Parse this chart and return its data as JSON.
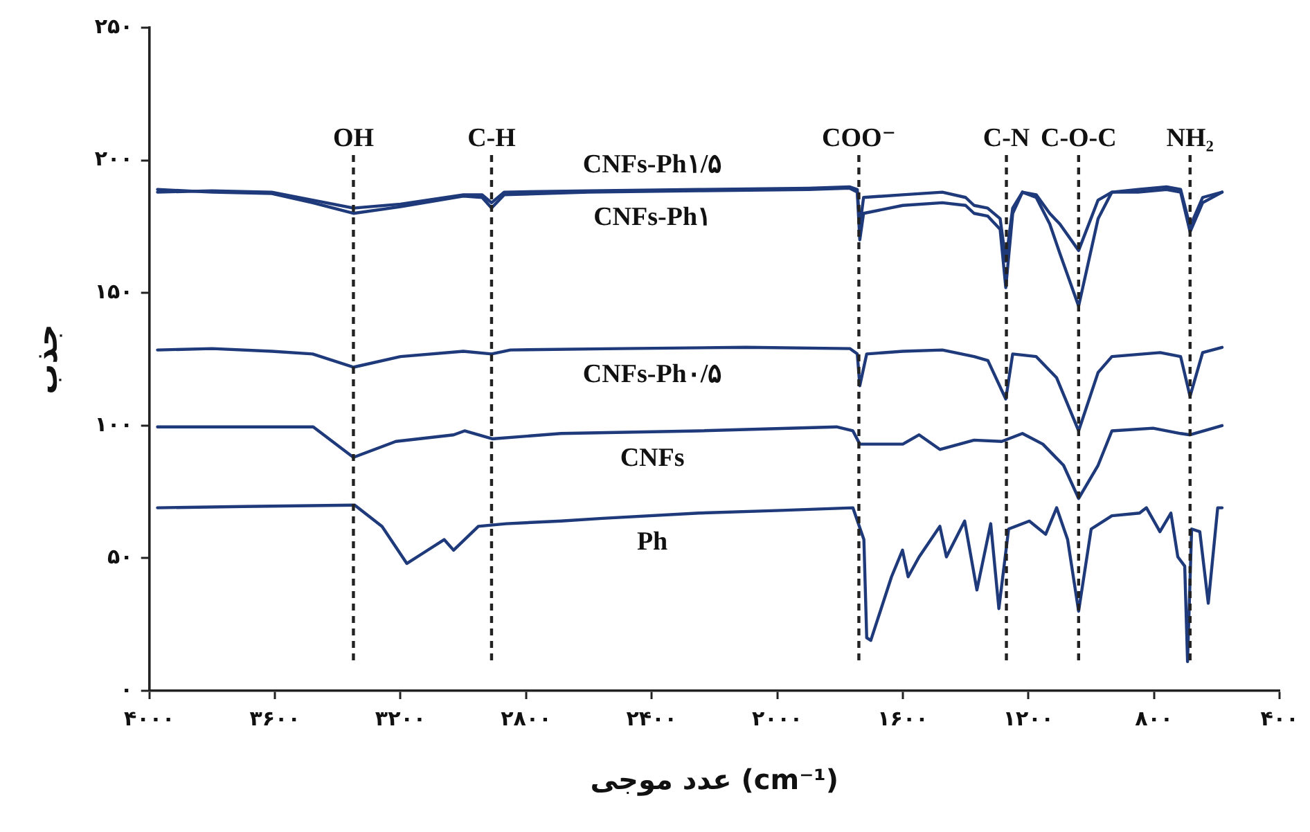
{
  "chart_data": {
    "type": "line",
    "xlabel": "عدد موجی (cm⁻¹)",
    "ylabel": "جذب",
    "xlim": [
      4000,
      400
    ],
    "ylim": [
      0,
      250
    ],
    "xticks": [
      {
        "value": 4000,
        "label": "۴۰۰۰"
      },
      {
        "value": 3600,
        "label": "۳۶۰۰"
      },
      {
        "value": 3200,
        "label": "۳۲۰۰"
      },
      {
        "value": 2800,
        "label": "۲۸۰۰"
      },
      {
        "value": 2400,
        "label": "۲۴۰۰"
      },
      {
        "value": 2000,
        "label": "۲۰۰۰"
      },
      {
        "value": 1600,
        "label": "۱۶۰۰"
      },
      {
        "value": 1200,
        "label": "۱۲۰۰"
      },
      {
        "value": 800,
        "label": "۸۰۰"
      },
      {
        "value": 400,
        "label": "۴۰۰"
      }
    ],
    "yticks": [
      {
        "value": 0,
        "label": "۰"
      },
      {
        "value": 50,
        "label": "۵۰"
      },
      {
        "value": 100,
        "label": "۱۰۰"
      },
      {
        "value": 150,
        "label": "۱۵۰"
      },
      {
        "value": 200,
        "label": "۲۰۰"
      },
      {
        "value": 250,
        "label": "۲۵۰"
      }
    ],
    "grid": false,
    "ref_lines": [
      {
        "axis": "x",
        "value": 3350,
        "label": "OH",
        "line_style": "dashed",
        "color": "#222222"
      },
      {
        "axis": "x",
        "value": 2910,
        "label": "C-H",
        "line_style": "dashed",
        "color": "#222222"
      },
      {
        "axis": "x",
        "value": 1740,
        "label": "COO⁻",
        "line_style": "dashed",
        "color": "#222222"
      },
      {
        "axis": "x",
        "value": 1270,
        "label": "C-N",
        "line_style": "dashed",
        "color": "#222222"
      },
      {
        "axis": "x",
        "value": 1040,
        "label": "C-O-C",
        "line_style": "dashed",
        "color": "#222222"
      },
      {
        "axis": "x",
        "value": 685,
        "label": "NH₂",
        "line_style": "dashed",
        "color": "#222222"
      }
    ],
    "series": [
      {
        "name": "CNFs-Ph۱/۵",
        "color": "#1f3a7a",
        "x": [
          3974,
          3800,
          3610,
          3480,
          3350,
          3200,
          3000,
          2940,
          2910,
          2870,
          2600,
          2250,
          1900,
          1770,
          1745,
          1737,
          1725,
          1600,
          1474,
          1400,
          1373,
          1330,
          1290,
          1272,
          1250,
          1219,
          1175,
          1132,
          1100,
          1040,
          978,
          934,
          850,
          760,
          715,
          685,
          645,
          583
        ],
        "values": [
          188,
          188.5,
          188,
          185,
          182,
          183.5,
          187,
          187,
          184,
          188,
          188.5,
          189,
          189.5,
          190,
          189,
          175,
          186,
          187,
          188,
          186,
          183,
          182,
          178,
          162,
          182,
          188,
          187,
          180,
          176,
          166,
          185,
          188,
          189,
          190,
          189,
          175,
          186,
          188
        ]
      },
      {
        "name": "CNFs-Ph۱",
        "color": "#1f3a7a",
        "x": [
          3974,
          3800,
          3610,
          3480,
          3350,
          3200,
          3000,
          2940,
          2910,
          2870,
          2600,
          2250,
          1900,
          1770,
          1745,
          1737,
          1725,
          1600,
          1474,
          1400,
          1373,
          1330,
          1290,
          1272,
          1250,
          1219,
          1175,
          1132,
          1100,
          1040,
          978,
          934,
          850,
          760,
          715,
          685,
          645,
          583
        ],
        "values": [
          189,
          188,
          187.5,
          184,
          180,
          182.5,
          186.5,
          186,
          182,
          187,
          188,
          188.5,
          189,
          189.5,
          188,
          170,
          180,
          183,
          184,
          183,
          180,
          179,
          174,
          152,
          180,
          188,
          186,
          176,
          165,
          145,
          178,
          188,
          188,
          189,
          188,
          173,
          184,
          188
        ]
      },
      {
        "name": "CNFs-Ph۰/۵",
        "color": "#1f3a7a",
        "x": [
          3974,
          3800,
          3610,
          3480,
          3350,
          3200,
          3000,
          2910,
          2850,
          2500,
          2100,
          1768,
          1745,
          1737,
          1715,
          1600,
          1474,
          1373,
          1329,
          1272,
          1250,
          1175,
          1110,
          1040,
          978,
          934,
          780,
          715,
          685,
          645,
          583
        ],
        "values": [
          128.5,
          129,
          128,
          127,
          122,
          126,
          128,
          127,
          128.5,
          129,
          129.5,
          129,
          127,
          115,
          127,
          128,
          128.5,
          126,
          124.5,
          110,
          127,
          126,
          118,
          98,
          120,
          126,
          127.5,
          126,
          111,
          127.5,
          129.5
        ]
      },
      {
        "name": "CNFs",
        "color": "#1f3a7a",
        "x": [
          3974,
          3700,
          3478,
          3350,
          3215,
          3031,
          2996,
          2908,
          2689,
          2250,
          1811,
          1759,
          1737,
          1600,
          1548,
          1482,
          1373,
          1285,
          1219,
          1154,
          1088,
          1040,
          978,
          934,
          803,
          715,
          685,
          583
        ],
        "values": [
          99.5,
          99.5,
          99.5,
          88,
          94,
          96.5,
          98,
          95,
          97,
          98,
          99.5,
          98,
          93,
          93,
          96.5,
          91,
          94.5,
          94,
          97,
          93,
          85,
          72.5,
          85,
          98,
          99,
          97,
          96.5,
          100
        ]
      },
      {
        "name": "Ph",
        "color": "#1f3a7a",
        "x": [
          3974,
          3700,
          3346,
          3259,
          3180,
          3127,
          3061,
          3031,
          2952,
          2864,
          2689,
          2557,
          2250,
          1987,
          1759,
          1724,
          1715,
          1702,
          1636,
          1601,
          1583,
          1548,
          1482,
          1461,
          1403,
          1364,
          1320,
          1294,
          1263,
          1197,
          1145,
          1110,
          1075,
          1040,
          1000,
          934,
          846,
          824,
          781,
          746,
          724,
          702,
          693,
          680,
          654,
          627,
          597,
          583
        ],
        "values": [
          69,
          69.5,
          70,
          62,
          48,
          52,
          57,
          53,
          62,
          63,
          64,
          65,
          67,
          68,
          69,
          57,
          20,
          19,
          43,
          53,
          43,
          50.5,
          62,
          50.5,
          64,
          38,
          63,
          31,
          61,
          64,
          59,
          69,
          57,
          30,
          61,
          66,
          67,
          69,
          60,
          67,
          50.5,
          47,
          11,
          61,
          60,
          33,
          69,
          69
        ]
      }
    ]
  }
}
